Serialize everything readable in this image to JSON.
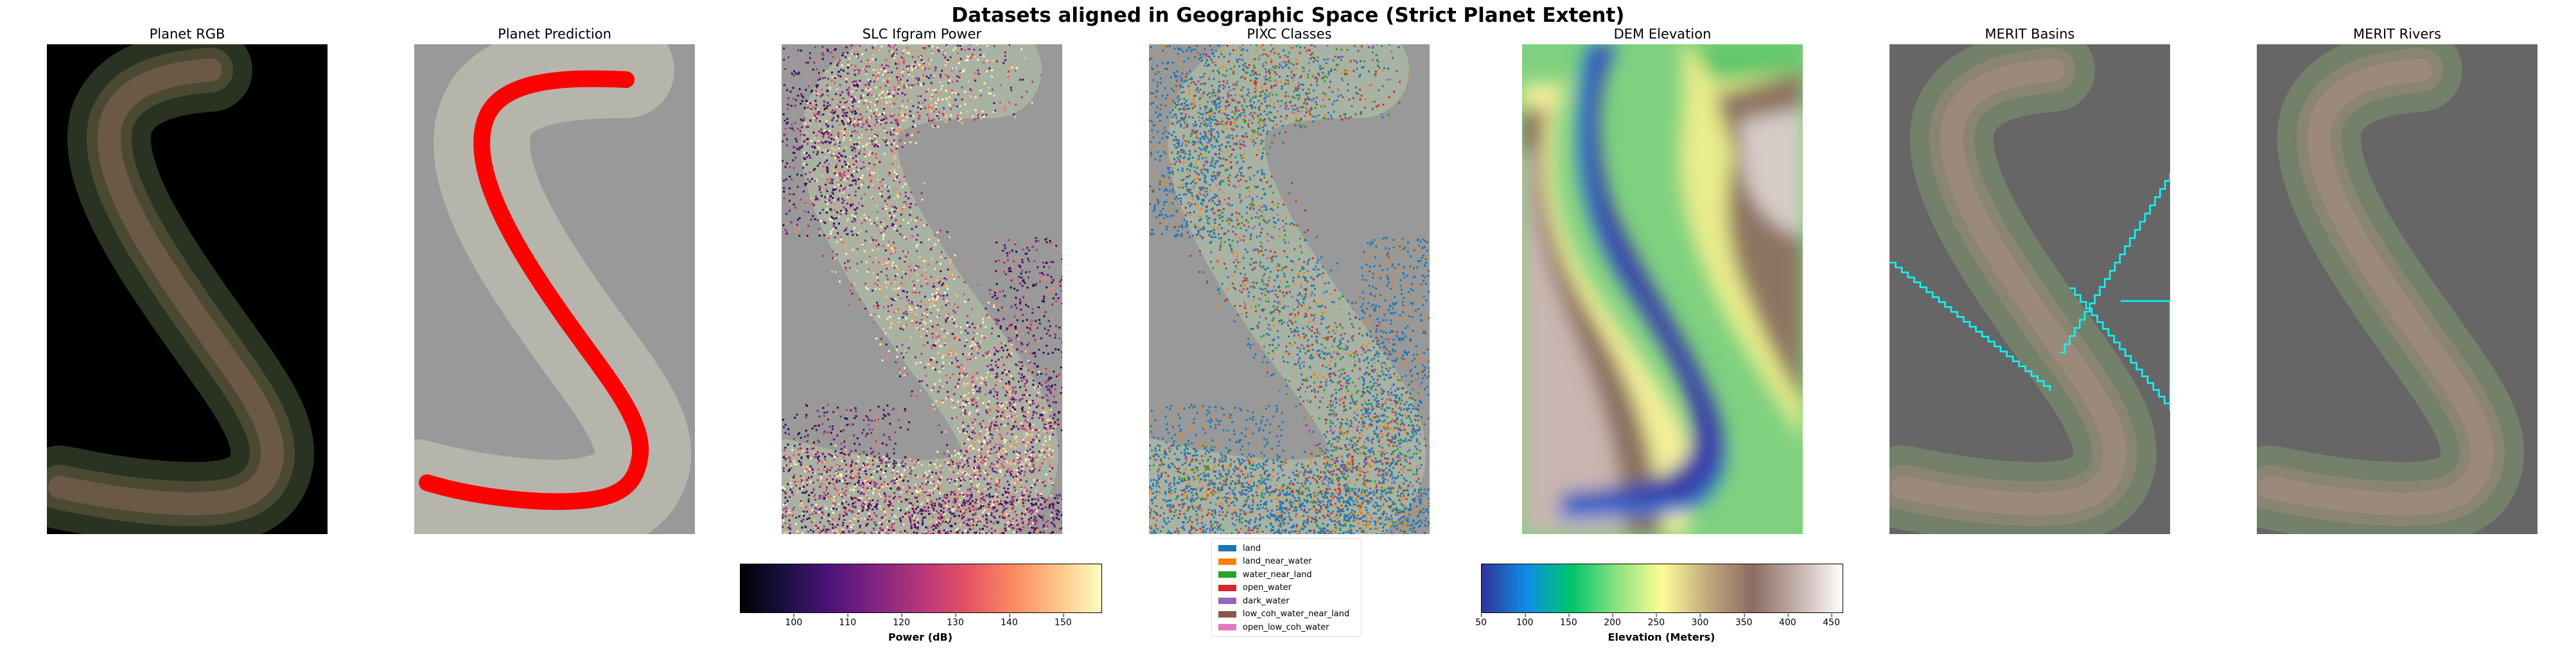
{
  "figure": {
    "title": "Datasets aligned in Geographic Space (Strict Planet Extent)"
  },
  "chart_data": [
    {
      "type": "image",
      "title": "Planet RGB",
      "colors": {
        "background": "#000000",
        "river": "#6b5845",
        "banks": "#3b4630"
      }
    },
    {
      "type": "image",
      "title": "Planet Prediction",
      "colors": {
        "background": "#999999",
        "corridor": "#b6b5ab",
        "prediction": "#ff0000"
      }
    },
    {
      "type": "heatmap",
      "title": "SLC Ifgram Power",
      "colorbar": {
        "label": "Power (dB)",
        "colormap": "magma",
        "range": [
          90,
          157
        ],
        "ticks": [
          "100",
          "110",
          "120",
          "130",
          "140",
          "150"
        ],
        "tick_values": [
          100,
          110,
          120,
          130,
          140,
          150
        ]
      }
    },
    {
      "type": "heatmap",
      "title": "PIXC Classes",
      "legend": {
        "position": "below",
        "entries": [
          {
            "label": "land",
            "color": "#1f77b4"
          },
          {
            "label": "land_near_water",
            "color": "#ff7f0e"
          },
          {
            "label": "water_near_land",
            "color": "#2ca02c"
          },
          {
            "label": "open_water",
            "color": "#d62728"
          },
          {
            "label": "dark_water",
            "color": "#9467bd"
          },
          {
            "label": "low_coh_water_near_land",
            "color": "#8c564b"
          },
          {
            "label": "open_low_coh_water",
            "color": "#e377c2"
          }
        ]
      }
    },
    {
      "type": "heatmap",
      "title": "DEM Elevation",
      "colorbar": {
        "label": "Elevation (Meters)",
        "colormap": "terrain",
        "range": [
          50,
          462
        ],
        "ticks": [
          "50",
          "100",
          "150",
          "200",
          "250",
          "300",
          "350",
          "400",
          "450"
        ],
        "tick_values": [
          50,
          100,
          150,
          200,
          250,
          300,
          350,
          400,
          450
        ]
      }
    },
    {
      "type": "image",
      "title": "MERIT Basins",
      "colors": {
        "background": "#666666",
        "boundary": "#00ffff"
      }
    },
    {
      "type": "image",
      "title": "MERIT Rivers",
      "colors": {
        "background": "#666666"
      }
    }
  ]
}
